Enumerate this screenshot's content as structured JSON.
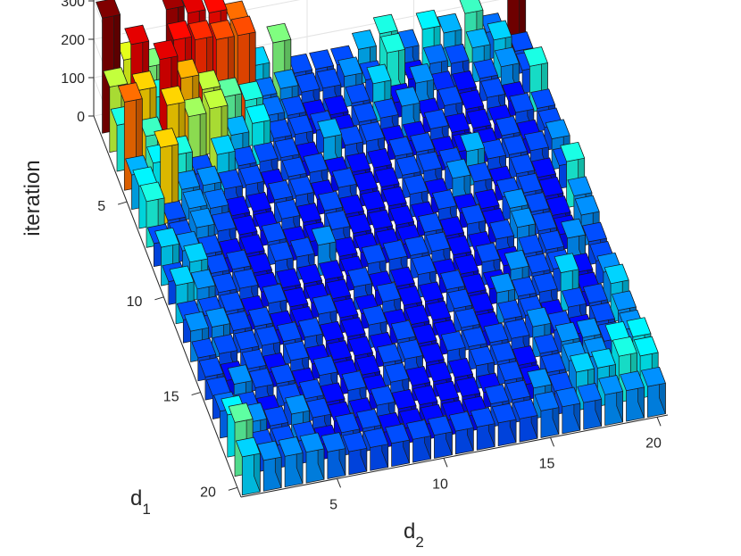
{
  "chart_data": {
    "type": "bar3",
    "title": "",
    "xlabel": "d",
    "xlabel_sub": "2",
    "ylabel": "d",
    "ylabel_sub": "1",
    "zlabel": "iteration",
    "x_ticks": [
      "5",
      "10",
      "15",
      "20"
    ],
    "y_ticks": [
      "5",
      "10",
      "15",
      "20"
    ],
    "z_ticks": [
      "0",
      "100",
      "200",
      "300"
    ],
    "x_range": [
      1,
      20
    ],
    "y_range": [
      1,
      20
    ],
    "zlim": [
      0,
      330
    ],
    "colormap": "jet",
    "color_range": [
      0,
      300
    ],
    "grid": true,
    "rows": [
      [
        300,
        180,
        150,
        290,
        270,
        260,
        230,
        100,
        150,
        60,
        60,
        60,
        90,
        120,
        70,
        110,
        90,
        130,
        70,
        300
      ],
      [
        170,
        270,
        120,
        260,
        250,
        240,
        240,
        70,
        80,
        60,
        60,
        80,
        60,
        120,
        40,
        70,
        60,
        90,
        100,
        60
      ],
      [
        120,
        200,
        270,
        210,
        170,
        140,
        120,
        70,
        60,
        40,
        40,
        60,
        100,
        40,
        80,
        50,
        40,
        60,
        80,
        60
      ],
      [
        230,
        130,
        200,
        160,
        170,
        90,
        110,
        60,
        60,
        60,
        40,
        60,
        60,
        80,
        40,
        60,
        40,
        60,
        40,
        120
      ],
      [
        90,
        110,
        120,
        60,
        100,
        60,
        60,
        60,
        40,
        90,
        60,
        60,
        40,
        40,
        60,
        40,
        40,
        40,
        60,
        60
      ],
      [
        110,
        200,
        80,
        80,
        60,
        60,
        40,
        60,
        60,
        40,
        40,
        40,
        60,
        60,
        40,
        40,
        40,
        60,
        40,
        60
      ],
      [
        120,
        60,
        80,
        70,
        40,
        40,
        60,
        60,
        40,
        60,
        40,
        40,
        60,
        60,
        60,
        90,
        60,
        60,
        60,
        80
      ],
      [
        60,
        60,
        80,
        60,
        40,
        40,
        60,
        40,
        60,
        40,
        40,
        40,
        60,
        40,
        80,
        60,
        40,
        60,
        40,
        60
      ],
      [
        100,
        80,
        60,
        40,
        40,
        60,
        40,
        40,
        60,
        40,
        40,
        40,
        40,
        60,
        40,
        40,
        60,
        60,
        40,
        120
      ],
      [
        60,
        100,
        60,
        60,
        40,
        60,
        60,
        80,
        40,
        40,
        40,
        40,
        60,
        40,
        60,
        40,
        80,
        60,
        40,
        80
      ],
      [
        100,
        80,
        60,
        60,
        40,
        40,
        40,
        40,
        40,
        60,
        60,
        60,
        60,
        40,
        40,
        60,
        80,
        60,
        40,
        80
      ],
      [
        60,
        60,
        60,
        40,
        60,
        40,
        40,
        40,
        60,
        40,
        40,
        60,
        40,
        40,
        60,
        40,
        60,
        60,
        80,
        60
      ],
      [
        80,
        80,
        60,
        60,
        40,
        40,
        60,
        40,
        40,
        60,
        40,
        40,
        60,
        40,
        40,
        80,
        60,
        60,
        40,
        60
      ],
      [
        60,
        60,
        60,
        60,
        60,
        60,
        40,
        40,
        60,
        40,
        40,
        40,
        60,
        40,
        80,
        60,
        60,
        100,
        40,
        80
      ],
      [
        60,
        40,
        60,
        40,
        60,
        40,
        40,
        40,
        40,
        60,
        40,
        40,
        60,
        40,
        60,
        60,
        40,
        60,
        60,
        100
      ],
      [
        60,
        80,
        60,
        60,
        40,
        60,
        40,
        40,
        60,
        60,
        40,
        60,
        60,
        60,
        60,
        80,
        60,
        40,
        60,
        80
      ],
      [
        70,
        60,
        40,
        60,
        60,
        40,
        60,
        40,
        60,
        40,
        40,
        40,
        60,
        60,
        40,
        60,
        80,
        80,
        60,
        80
      ],
      [
        110,
        80,
        60,
        80,
        60,
        40,
        40,
        60,
        40,
        40,
        40,
        40,
        40,
        60,
        40,
        60,
        80,
        80,
        110,
        110
      ],
      [
        140,
        60,
        60,
        60,
        40,
        60,
        60,
        40,
        40,
        40,
        40,
        40,
        60,
        60,
        80,
        60,
        100,
        100,
        120,
        110
      ],
      [
        100,
        80,
        80,
        80,
        70,
        60,
        60,
        60,
        60,
        60,
        60,
        60,
        60,
        60,
        70,
        70,
        70,
        80,
        80,
        80
      ]
    ]
  }
}
